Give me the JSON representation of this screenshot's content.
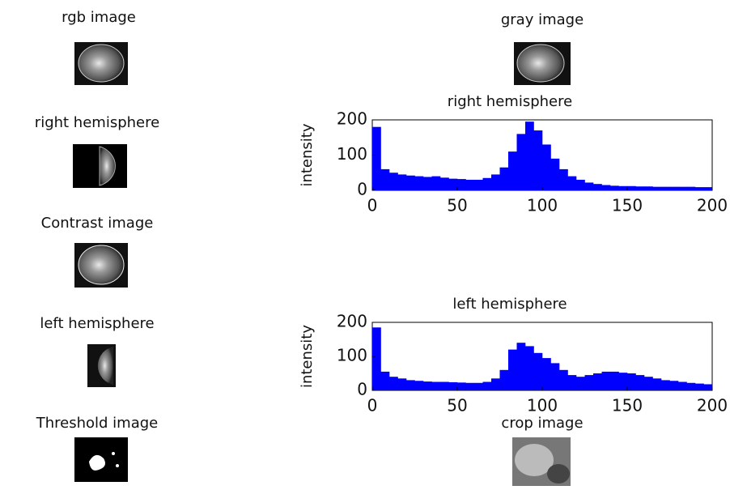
{
  "panels": {
    "rgb": "rgb image",
    "gray": "gray image",
    "right": "right hemisphere",
    "contrast": "Contrast image",
    "left": "left hemisphere",
    "threshold": "Threshold image",
    "crop": "crop image"
  },
  "chart_data": [
    {
      "type": "histogram",
      "title": "right hemisphere",
      "y_label": "intensity",
      "color": "#0000ff",
      "bins": [
        0,
        5,
        10,
        15,
        20,
        25,
        30,
        35,
        40,
        45,
        50,
        55,
        60,
        65,
        70,
        75,
        80,
        85,
        90,
        95,
        100,
        105,
        110,
        115,
        120,
        125,
        130,
        135,
        140,
        145,
        150,
        155,
        160,
        165,
        170,
        175,
        180,
        185,
        190,
        195,
        200
      ],
      "values": [
        180,
        60,
        50,
        45,
        42,
        40,
        38,
        40,
        36,
        33,
        32,
        30,
        30,
        35,
        45,
        65,
        110,
        160,
        195,
        170,
        130,
        90,
        60,
        40,
        30,
        22,
        18,
        15,
        13,
        12,
        12,
        11,
        11,
        10,
        10,
        10,
        10,
        10,
        9,
        9
      ],
      "xlim": [
        0,
        200
      ],
      "xticks": [
        0,
        50,
        100,
        150,
        200
      ],
      "ylim": [
        0,
        200
      ],
      "yticks": [
        0,
        100,
        200
      ]
    },
    {
      "type": "histogram",
      "title": "left hemisphere",
      "y_label": "intensity",
      "color": "#0000ff",
      "bins": [
        0,
        5,
        10,
        15,
        20,
        25,
        30,
        35,
        40,
        45,
        50,
        55,
        60,
        65,
        70,
        75,
        80,
        85,
        90,
        95,
        100,
        105,
        110,
        115,
        120,
        125,
        130,
        135,
        140,
        145,
        150,
        155,
        160,
        165,
        170,
        175,
        180,
        185,
        190,
        195,
        200
      ],
      "values": [
        185,
        55,
        40,
        35,
        30,
        28,
        26,
        25,
        25,
        24,
        23,
        22,
        22,
        25,
        35,
        60,
        120,
        140,
        130,
        110,
        95,
        80,
        60,
        45,
        40,
        45,
        50,
        55,
        55,
        52,
        50,
        45,
        40,
        35,
        30,
        28,
        25,
        22,
        20,
        18
      ],
      "xlim": [
        0,
        200
      ],
      "xticks": [
        0,
        50,
        100,
        150,
        200
      ],
      "ylim": [
        0,
        200
      ],
      "yticks": [
        0,
        100,
        200
      ]
    }
  ]
}
